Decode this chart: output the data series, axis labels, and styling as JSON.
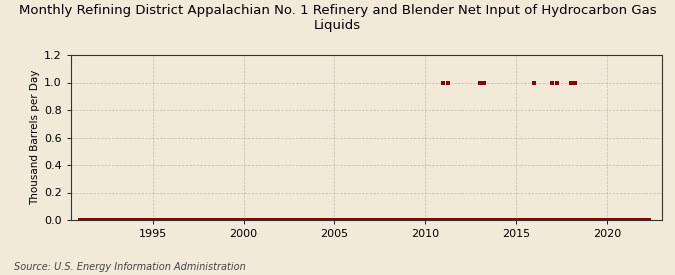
{
  "title": "Monthly Refining District Appalachian No. 1 Refinery and Blender Net Input of Hydrocarbon Gas\nLiquids",
  "ylabel": "Thousand Barrels per Day",
  "source": "Source: U.S. Energy Information Administration",
  "background_color": "#f2ead8",
  "plot_bg_color": "#f2ead8",
  "line_color": "#8b0000",
  "marker_color": "#8b0000",
  "grid_color": "#aaaaaa",
  "xlim": [
    1990.5,
    2023
  ],
  "ylim": [
    0,
    1.2
  ],
  "yticks": [
    0.0,
    0.2,
    0.4,
    0.6,
    0.8,
    1.0,
    1.2
  ],
  "xticks": [
    1995,
    2000,
    2005,
    2010,
    2015,
    2020
  ],
  "title_fontsize": 9.5,
  "ylabel_fontsize": 7.5,
  "tick_fontsize": 8,
  "source_fontsize": 7,
  "data_x": [
    1991.0,
    1991.083,
    1991.167,
    1991.25,
    1991.333,
    1991.417,
    1991.5,
    1991.583,
    1991.667,
    1991.75,
    1991.833,
    1991.917,
    1992.0,
    1992.083,
    1992.167,
    1992.25,
    1992.333,
    1992.417,
    1992.5,
    1992.583,
    1992.667,
    1992.75,
    1992.833,
    1992.917,
    1993.0,
    1993.083,
    1993.167,
    1993.25,
    1993.333,
    1993.417,
    1993.5,
    1993.583,
    1993.667,
    1993.75,
    1993.833,
    1993.917,
    1994.0,
    1994.083,
    1994.167,
    1994.25,
    1994.333,
    1994.417,
    1994.5,
    1994.583,
    1994.667,
    1994.75,
    1994.833,
    1994.917,
    1995.0,
    1995.083,
    1995.167,
    1995.25,
    1995.333,
    1995.417,
    1995.5,
    1995.583,
    1995.667,
    1995.75,
    1995.833,
    1995.917,
    1996.0,
    1996.083,
    1996.167,
    1996.25,
    1996.333,
    1996.417,
    1996.5,
    1996.583,
    1996.667,
    1996.75,
    1996.833,
    1996.917,
    1997.0,
    1997.083,
    1997.167,
    1997.25,
    1997.333,
    1997.417,
    1997.5,
    1997.583,
    1997.667,
    1997.75,
    1997.833,
    1997.917,
    1998.0,
    1998.083,
    1998.167,
    1998.25,
    1998.333,
    1998.417,
    1998.5,
    1998.583,
    1998.667,
    1998.75,
    1998.833,
    1998.917,
    1999.0,
    1999.083,
    1999.167,
    1999.25,
    1999.333,
    1999.417,
    1999.5,
    1999.583,
    1999.667,
    1999.75,
    1999.833,
    1999.917,
    2000.0,
    2000.083,
    2000.167,
    2000.25,
    2000.333,
    2000.417,
    2000.5,
    2000.583,
    2000.667,
    2000.75,
    2000.833,
    2000.917,
    2001.0,
    2001.083,
    2001.167,
    2001.25,
    2001.333,
    2001.417,
    2001.5,
    2001.583,
    2001.667,
    2001.75,
    2001.833,
    2001.917,
    2002.0,
    2002.083,
    2002.167,
    2002.25,
    2002.333,
    2002.417,
    2002.5,
    2002.583,
    2002.667,
    2002.75,
    2002.833,
    2002.917,
    2003.0,
    2003.083,
    2003.167,
    2003.25,
    2003.333,
    2003.417,
    2003.5,
    2003.583,
    2003.667,
    2003.75,
    2003.833,
    2003.917,
    2004.0,
    2004.083,
    2004.167,
    2004.25,
    2004.333,
    2004.417,
    2004.5,
    2004.583,
    2004.667,
    2004.75,
    2004.833,
    2004.917,
    2005.0,
    2005.083,
    2005.167,
    2005.25,
    2005.333,
    2005.417,
    2005.5,
    2005.583,
    2005.667,
    2005.75,
    2005.833,
    2005.917,
    2006.0,
    2006.083,
    2006.167,
    2006.25,
    2006.333,
    2006.417,
    2006.5,
    2006.583,
    2006.667,
    2006.75,
    2006.833,
    2006.917,
    2007.0,
    2007.083,
    2007.167,
    2007.25,
    2007.333,
    2007.417,
    2007.5,
    2007.583,
    2007.667,
    2007.75,
    2007.833,
    2007.917,
    2008.0,
    2008.083,
    2008.167,
    2008.25,
    2008.333,
    2008.417,
    2008.5,
    2008.583,
    2008.667,
    2008.75,
    2008.833,
    2008.917,
    2009.0,
    2009.083,
    2009.167,
    2009.25,
    2009.333,
    2009.417,
    2009.5,
    2009.583,
    2009.667,
    2009.75,
    2009.833,
    2009.917,
    2010.0,
    2010.083,
    2010.167,
    2010.25,
    2010.333,
    2010.417,
    2010.5,
    2010.583,
    2010.667,
    2010.75,
    2010.833,
    2010.917,
    2011.0,
    2011.083,
    2011.167,
    2011.25,
    2011.333,
    2011.417,
    2011.5,
    2011.583,
    2011.667,
    2011.75,
    2011.833,
    2011.917,
    2012.0,
    2012.083,
    2012.167,
    2012.25,
    2012.333,
    2012.417,
    2012.5,
    2012.583,
    2012.667,
    2012.75,
    2012.833,
    2012.917,
    2013.0,
    2013.083,
    2013.167,
    2013.25,
    2013.333,
    2013.417,
    2013.5,
    2013.583,
    2013.667,
    2013.75,
    2013.833,
    2013.917,
    2014.0,
    2014.083,
    2014.167,
    2014.25,
    2014.333,
    2014.417,
    2014.5,
    2014.583,
    2014.667,
    2014.75,
    2014.833,
    2014.917,
    2015.0,
    2015.083,
    2015.167,
    2015.25,
    2015.333,
    2015.417,
    2015.5,
    2015.583,
    2015.667,
    2015.75,
    2015.833,
    2015.917,
    2016.0,
    2016.083,
    2016.167,
    2016.25,
    2016.333,
    2016.417,
    2016.5,
    2016.583,
    2016.667,
    2016.75,
    2016.833,
    2016.917,
    2017.0,
    2017.083,
    2017.167,
    2017.25,
    2017.333,
    2017.417,
    2017.5,
    2017.583,
    2017.667,
    2017.75,
    2017.833,
    2017.917,
    2018.0,
    2018.083,
    2018.167,
    2018.25,
    2018.333,
    2018.417,
    2018.5,
    2018.583,
    2018.667,
    2018.75,
    2018.833,
    2018.917,
    2019.0,
    2019.083,
    2019.167,
    2019.25,
    2019.333,
    2019.417,
    2019.5,
    2019.583,
    2019.667,
    2019.75,
    2019.833,
    2019.917,
    2020.0,
    2020.083,
    2020.167,
    2020.25,
    2020.333,
    2020.417,
    2020.5,
    2020.583,
    2020.667,
    2020.75,
    2020.833,
    2020.917,
    2021.0,
    2021.083,
    2021.167,
    2021.25,
    2021.333,
    2021.417,
    2021.5,
    2021.583,
    2021.667,
    2021.75,
    2021.833,
    2021.917,
    2022.0,
    2022.083,
    2022.167,
    2022.25,
    2022.333
  ],
  "data_y": [
    0,
    0,
    0,
    0,
    0,
    0,
    0,
    0,
    0,
    0,
    0,
    0,
    0,
    0,
    0,
    0,
    0,
    0,
    0,
    0,
    0,
    0,
    0,
    0,
    0,
    0,
    0,
    0,
    0,
    0,
    0,
    0,
    0,
    0,
    0,
    0,
    0,
    0,
    0,
    0,
    0,
    0,
    0,
    0,
    0,
    0,
    0,
    0,
    0,
    0,
    0,
    0,
    0,
    0,
    0,
    0,
    0,
    0,
    0,
    0,
    0,
    0,
    0,
    0,
    0,
    0,
    0,
    0,
    0,
    0,
    0,
    0,
    0,
    0,
    0,
    0,
    0,
    0,
    0,
    0,
    0,
    0,
    0,
    0,
    0,
    0,
    0,
    0,
    0,
    0,
    0,
    0,
    0,
    0,
    0,
    0,
    0,
    0,
    0,
    0,
    0,
    0,
    0,
    0,
    0,
    0,
    0,
    0,
    0,
    0,
    0,
    0,
    0,
    0,
    0,
    0,
    0,
    0,
    0,
    0,
    0,
    0,
    0,
    0,
    0,
    0,
    0,
    0,
    0,
    0,
    0,
    0,
    0,
    0,
    0,
    0,
    0,
    0,
    0,
    0,
    0,
    0,
    0,
    0,
    0,
    0,
    0,
    0,
    0,
    0,
    0,
    0,
    0,
    0,
    0,
    0,
    0,
    0,
    0,
    0,
    0,
    0,
    0,
    0,
    0,
    0,
    0,
    0,
    0,
    0,
    0,
    0,
    0,
    0,
    0,
    0,
    0,
    0,
    0,
    0,
    0,
    0,
    0,
    0,
    0,
    0,
    0,
    0,
    0,
    0,
    0,
    0,
    0,
    0,
    0,
    0,
    0,
    0,
    0,
    0,
    0,
    0,
    0,
    0,
    0,
    0,
    0,
    0,
    0,
    0,
    0,
    0,
    0,
    0,
    0,
    0,
    0,
    0,
    0,
    0,
    0,
    0,
    0,
    0,
    0,
    0,
    0,
    0,
    0,
    0,
    0,
    0,
    0,
    0,
    0,
    0,
    0,
    0,
    0,
    0,
    1,
    0,
    0,
    1,
    0,
    0,
    0,
    0,
    0,
    0,
    0,
    0,
    0,
    0,
    0,
    0,
    0,
    0,
    0,
    0,
    0,
    0,
    0,
    0,
    1,
    0,
    0,
    1,
    0,
    0,
    0,
    0,
    0,
    0,
    0,
    0,
    0,
    0,
    0,
    0,
    0,
    0,
    0,
    0,
    0,
    0,
    0,
    0,
    0,
    0,
    0,
    0,
    0,
    0,
    0,
    0,
    0,
    0,
    0,
    0,
    1,
    0,
    0,
    0,
    0,
    0,
    0,
    0,
    0,
    0,
    0,
    0,
    1,
    0,
    0,
    1,
    0,
    0,
    0,
    0,
    0,
    0,
    0,
    0,
    1,
    0,
    0,
    1,
    0,
    0,
    0,
    0,
    0,
    0,
    0,
    0,
    0,
    0,
    0,
    0,
    0,
    0,
    0,
    0,
    0,
    0,
    0,
    0,
    0,
    0,
    0,
    0,
    0,
    0,
    0,
    0,
    0,
    0,
    0,
    0,
    0,
    0,
    0,
    0,
    0,
    0,
    0,
    0,
    0,
    0,
    0,
    0,
    0,
    0,
    0,
    0,
    0
  ]
}
